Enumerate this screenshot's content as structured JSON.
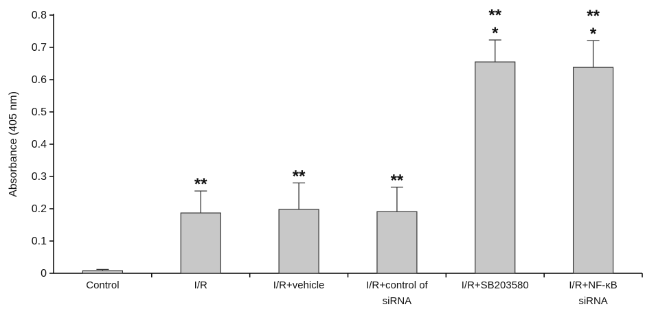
{
  "chart_data": {
    "type": "bar",
    "ylabel": "Absorbance (405 nm)",
    "xlabel": "",
    "ylim": [
      0,
      0.8
    ],
    "yticks": [
      "0",
      "0.1",
      "0.2",
      "0.3",
      "0.4",
      "0.5",
      "0.6",
      "0.7",
      "0.8"
    ],
    "categories": [
      [
        "Control"
      ],
      [
        "I/R"
      ],
      [
        "I/R+vehicle"
      ],
      [
        "I/R+control of",
        "siRNA"
      ],
      [
        "I/R+SB203580"
      ],
      [
        "I/R+NF-κB",
        "siRNA"
      ]
    ],
    "values": [
      0.008,
      0.187,
      0.198,
      0.191,
      0.655,
      0.638
    ],
    "errors": [
      0.004,
      0.068,
      0.082,
      0.076,
      0.068,
      0.083
    ],
    "annotations": [
      [],
      [
        "**"
      ],
      [
        "**"
      ],
      [
        "**"
      ],
      [
        "**",
        "*"
      ],
      [
        "**",
        "*"
      ]
    ],
    "bar_color": "#c8c8c8",
    "grid": false,
    "legend": "none"
  }
}
